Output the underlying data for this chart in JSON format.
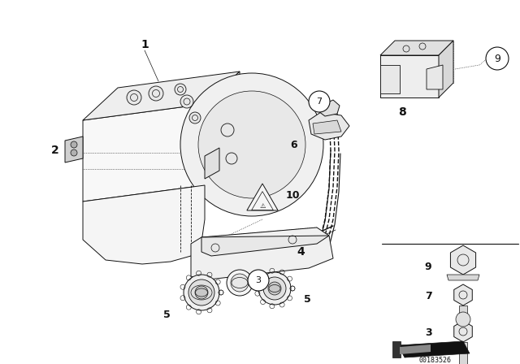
{
  "background_color": "#ffffff",
  "image_id": "00183526",
  "fig_w": 6.4,
  "fig_h": 4.48,
  "dpi": 100,
  "line_color": "#111111",
  "lw": 0.7
}
